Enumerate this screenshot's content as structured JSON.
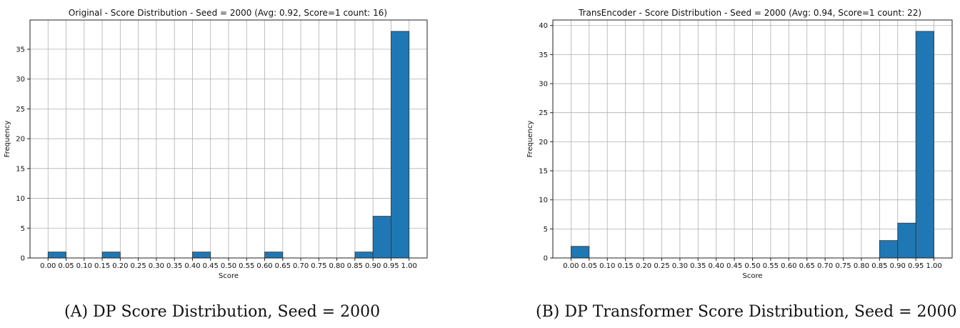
{
  "chart_data": [
    {
      "type": "bar",
      "title": "Original - Score Distribution - Seed = 2000 (Avg: 0.92, Score=1 count: 16)",
      "xlabel": "Score",
      "ylabel": "Frequency",
      "bin_edges": [
        0.0,
        0.05,
        0.1,
        0.15,
        0.2,
        0.25,
        0.3,
        0.35,
        0.4,
        0.45,
        0.5,
        0.55,
        0.6,
        0.65,
        0.7,
        0.75,
        0.8,
        0.85,
        0.9,
        0.95,
        1.0
      ],
      "values": [
        1,
        0,
        0,
        1,
        0,
        0,
        0,
        0,
        1,
        0,
        0,
        0,
        1,
        0,
        0,
        0,
        0,
        1,
        7,
        38
      ],
      "xticks": [
        "0.00",
        "0.05",
        "0.10",
        "0.15",
        "0.20",
        "0.25",
        "0.30",
        "0.35",
        "0.40",
        "0.45",
        "0.50",
        "0.55",
        "0.60",
        "0.65",
        "0.70",
        "0.75",
        "0.80",
        "0.85",
        "0.90",
        "0.95",
        "1.00"
      ],
      "yticks": [
        0,
        5,
        10,
        15,
        20,
        25,
        30,
        35
      ],
      "ylim": [
        0,
        39.9
      ],
      "xlim": [
        -0.05,
        1.05
      ],
      "grid": true,
      "bar_color": "#1f77b4"
    },
    {
      "type": "bar",
      "title": "TransEncoder - Score Distribution - Seed = 2000 (Avg: 0.94, Score=1 count: 22)",
      "xlabel": "Score",
      "ylabel": "Frequency",
      "bin_edges": [
        0.0,
        0.05,
        0.1,
        0.15,
        0.2,
        0.25,
        0.3,
        0.35,
        0.4,
        0.45,
        0.5,
        0.55,
        0.6,
        0.65,
        0.7,
        0.75,
        0.8,
        0.85,
        0.9,
        0.95,
        1.0
      ],
      "values": [
        2,
        0,
        0,
        0,
        0,
        0,
        0,
        0,
        0,
        0,
        0,
        0,
        0,
        0,
        0,
        0,
        0,
        3,
        6,
        39
      ],
      "xticks": [
        "0.00",
        "0.05",
        "0.10",
        "0.15",
        "0.20",
        "0.25",
        "0.30",
        "0.35",
        "0.40",
        "0.45",
        "0.50",
        "0.55",
        "0.60",
        "0.65",
        "0.70",
        "0.75",
        "0.80",
        "0.85",
        "0.90",
        "0.95",
        "1.00"
      ],
      "yticks": [
        0,
        5,
        10,
        15,
        20,
        25,
        30,
        35,
        40
      ],
      "ylim": [
        0,
        40.95
      ],
      "xlim": [
        -0.05,
        1.05
      ],
      "grid": true,
      "bar_color": "#1f77b4"
    }
  ],
  "captions": {
    "a": "(A) DP Score Distribution, Seed = 2000",
    "b": "(B) DP Transformer Score Distribution, Seed = 2000"
  }
}
